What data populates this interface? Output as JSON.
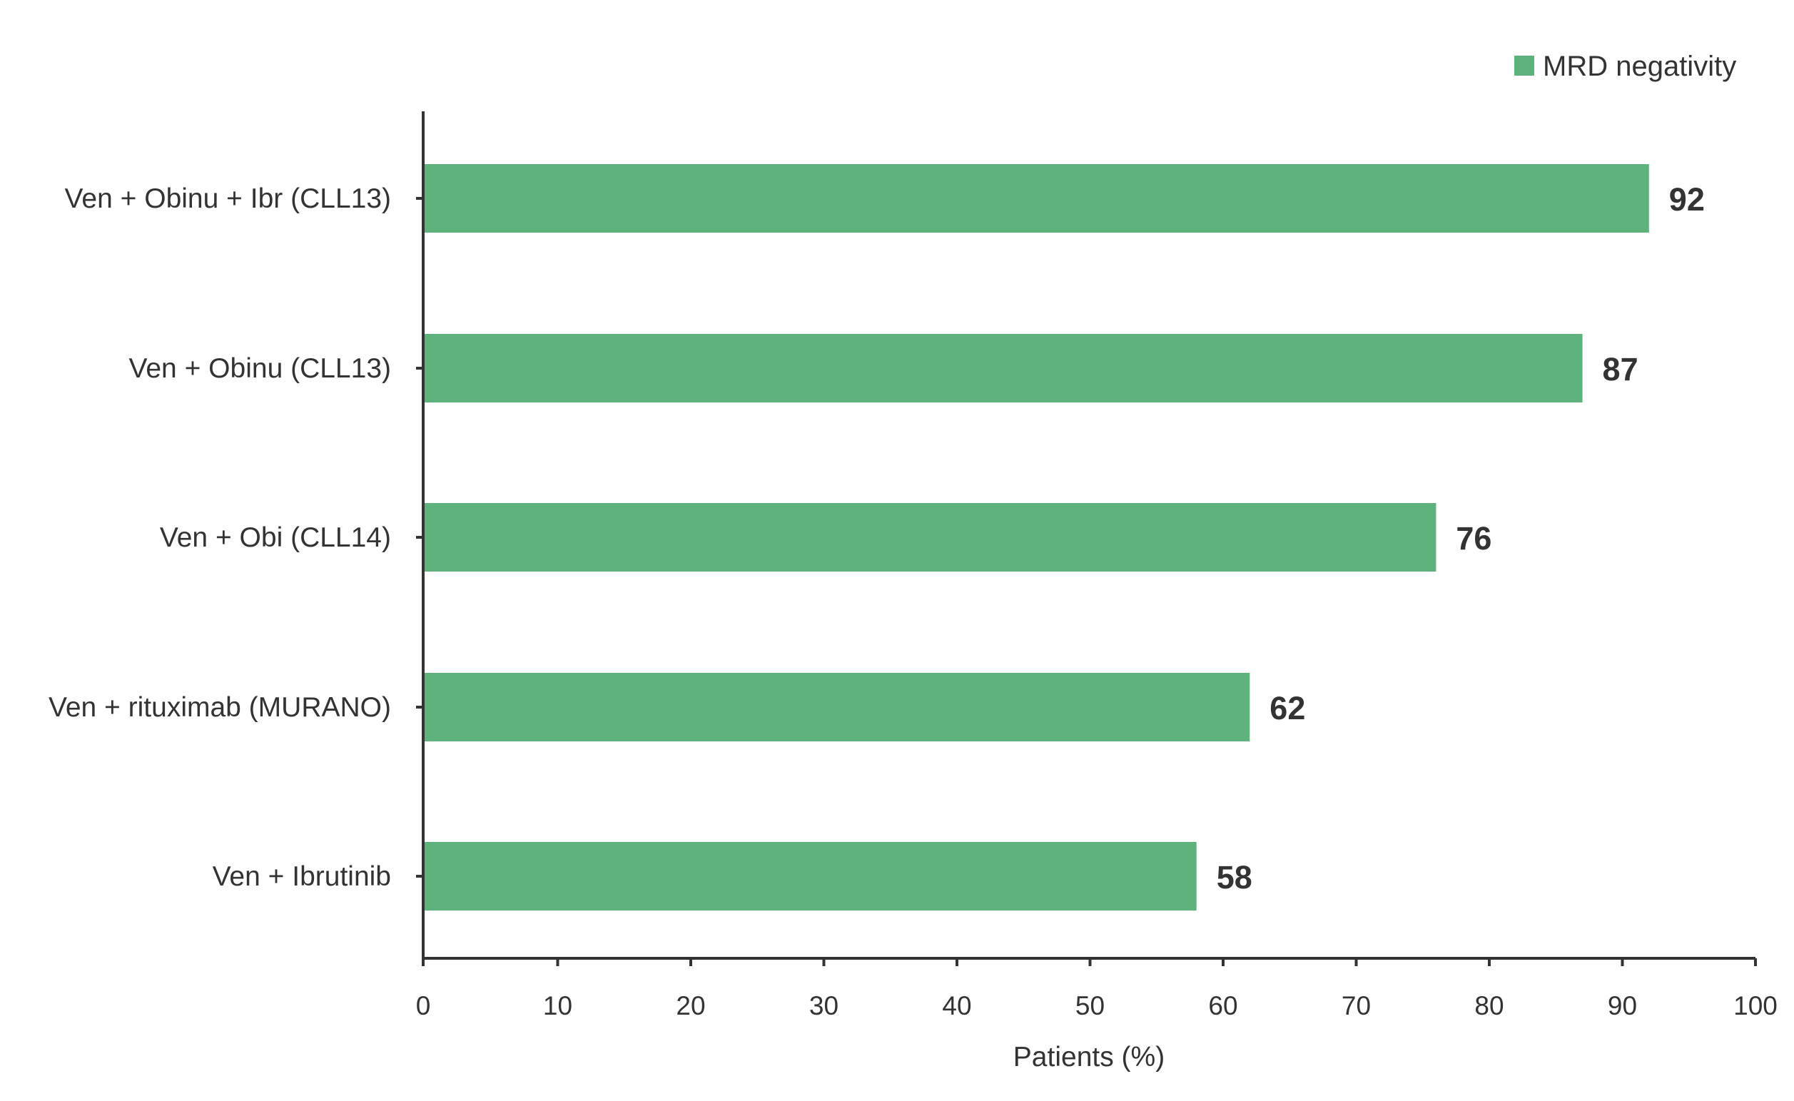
{
  "chart_data": {
    "type": "bar",
    "orientation": "horizontal",
    "categories": [
      "Ven + Obinu + Ibr (CLL13)",
      "Ven + Obinu (CLL13)",
      "Ven + Obi (CLL14)",
      "Ven + rituximab (MURANO)",
      "Ven + Ibrutinib"
    ],
    "series": [
      {
        "name": "MRD negativity",
        "values": [
          92,
          87,
          76,
          62,
          58
        ],
        "color": "#5db37b"
      }
    ],
    "value_labels": [
      "92",
      "87",
      "76",
      "62",
      "58"
    ],
    "xlabel": "Patients (%)",
    "ylabel": "",
    "xlim": [
      0,
      100
    ],
    "xticks": [
      0,
      10,
      20,
      30,
      40,
      50,
      60,
      70,
      80,
      90,
      100
    ],
    "xtick_labels": [
      "0",
      "10",
      "20",
      "30",
      "40",
      "50",
      "60",
      "70",
      "80",
      "90",
      "100"
    ],
    "grid": false,
    "legend": {
      "position": "top-right",
      "entries": [
        "MRD negativity"
      ]
    }
  }
}
